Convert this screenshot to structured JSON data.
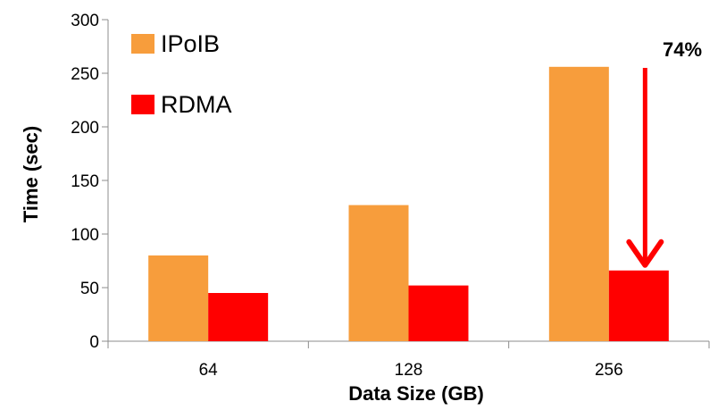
{
  "chart_data": {
    "type": "bar",
    "title": "",
    "xlabel": "Data Size (GB)",
    "ylabel": "Time (sec)",
    "categories": [
      "64",
      "128",
      "256"
    ],
    "ylim": [
      0,
      300
    ],
    "yticks": [
      0,
      50,
      100,
      150,
      200,
      250,
      300
    ],
    "grid": false,
    "legend_position": "top-left, inside",
    "series": [
      {
        "name": "IPoIB",
        "color": "#F79D3C",
        "values": [
          80,
          127,
          256
        ]
      },
      {
        "name": "RDMA",
        "color": "#FF0000",
        "values": [
          45,
          52,
          66
        ]
      }
    ],
    "annotation": {
      "text": "74%",
      "category": "256",
      "from_value": 255,
      "to_value": 66,
      "color": "#FF0000"
    }
  }
}
